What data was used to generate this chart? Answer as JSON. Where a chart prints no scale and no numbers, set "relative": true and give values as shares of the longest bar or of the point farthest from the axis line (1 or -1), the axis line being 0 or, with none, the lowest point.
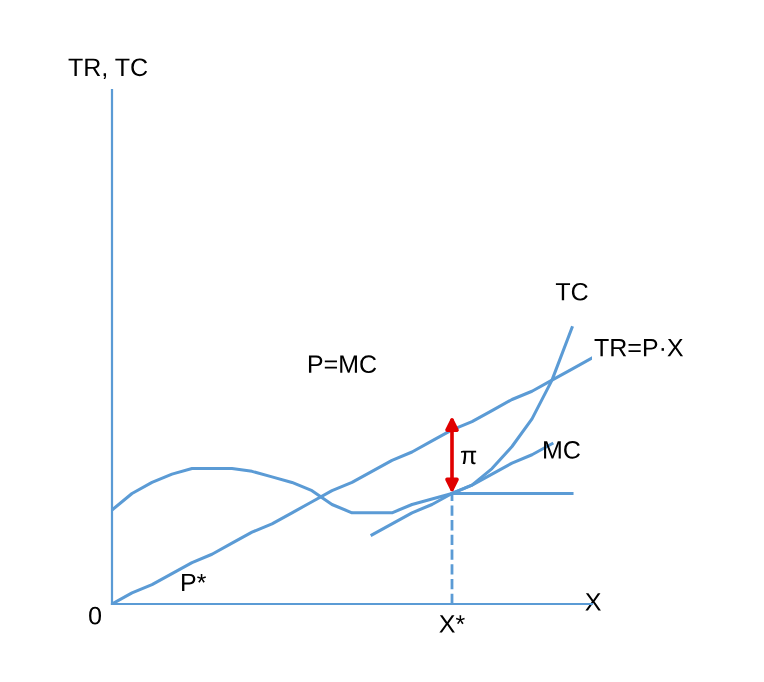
{
  "chart_data": {
    "type": "line",
    "relative": true,
    "xlabel": "X",
    "marker": "none",
    "line_style": "solid",
    "categories": [
      null,
      null,
      null,
      null,
      null,
      null,
      null,
      null,
      null,
      null,
      null,
      null,
      null,
      null,
      null,
      null,
      null,
      null,
      null,
      null,
      null,
      null,
      null,
      null,
      null
    ],
    "series": [
      {
        "name": "TR=P·X",
        "color": "#5b9bd5",
        "values": [
          0,
          0.04,
          0.07,
          0.11,
          0.15,
          0.18,
          0.22,
          0.26,
          0.29,
          0.33,
          0.37,
          0.41,
          0.44,
          0.48,
          0.52,
          0.55,
          0.59,
          0.63,
          0.66,
          0.7,
          0.74,
          0.77,
          0.81,
          0.85,
          0.89
        ]
      },
      {
        "name": "TC",
        "color": "#5b9bd5",
        "values": [
          0.34,
          0.4,
          0.44,
          0.47,
          0.49,
          0.49,
          0.49,
          0.48,
          0.46,
          0.44,
          0.41,
          0.36,
          0.33,
          0.33,
          0.33,
          0.36,
          0.38,
          0.4,
          0.43,
          0.49,
          0.57,
          0.67,
          0.81,
          1.0,
          null
        ]
      },
      {
        "name": "MC",
        "color": "#5b9bd5",
        "values": [
          null,
          null,
          null,
          null,
          null,
          null,
          null,
          null,
          null,
          null,
          null,
          null,
          null,
          0.25,
          0.29,
          0.33,
          0.36,
          0.4,
          0.43,
          0.47,
          0.51,
          0.54,
          0.58,
          null,
          null
        ]
      },
      {
        "color": "#5b9bd5",
        "values": [
          null,
          null,
          null,
          null,
          null,
          null,
          null,
          null,
          null,
          null,
          null,
          null,
          null,
          null,
          null,
          null,
          null,
          0.4,
          0.4,
          0.4,
          0.4,
          0.4,
          0.4,
          0.4,
          null
        ]
      }
    ],
    "annotations": [
      "0",
      "P*",
      "P=MC",
      "π",
      "X*",
      "TR, TC"
    ]
  }
}
